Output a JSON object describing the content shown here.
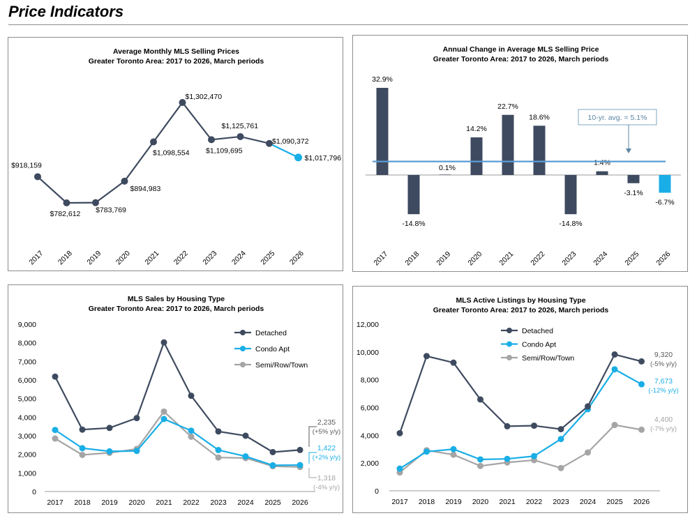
{
  "page": {
    "title": "Price Indicators"
  },
  "colors": {
    "detached": "#3e4a5f",
    "condo": "#19aee6",
    "semi": "#a5a5a5",
    "avg_line": "#5b9bd5",
    "axis": "#999999"
  },
  "chart_data": [
    {
      "id": "avg-prices",
      "type": "line",
      "title": "Average Monthly MLS Selling Prices",
      "subtitle": "Greater Toronto Area: 2017 to 2026, March periods",
      "categories": [
        "2017",
        "2018",
        "2019",
        "2020",
        "2021",
        "2022",
        "2023",
        "2024",
        "2025",
        "2026"
      ],
      "values": [
        918159,
        782612,
        783769,
        894983,
        1098554,
        1302470,
        1109695,
        1125761,
        1090372,
        1017796
      ],
      "labels": [
        "$918,159",
        "$782,612",
        "$783,769",
        "$894,983",
        "$1,098,554",
        "$1,302,470",
        "$1,109,695",
        "$1,125,761",
        "$1,090,372",
        "$1,017,796"
      ],
      "highlight_last": true
    },
    {
      "id": "annual-change",
      "type": "bar",
      "title": "Annual Change in Average MLS Selling Price",
      "subtitle": "Greater Toronto Area: 2017 to 2026, March periods",
      "categories": [
        "2017",
        "2018",
        "2019",
        "2020",
        "2021",
        "2022",
        "2023",
        "2024",
        "2025",
        "2026"
      ],
      "values": [
        32.9,
        -14.8,
        0.1,
        14.2,
        22.7,
        18.6,
        -14.8,
        1.4,
        -3.1,
        -6.7
      ],
      "labels": [
        "32.9%",
        "-14.8%",
        "0.1%",
        "14.2%",
        "22.7%",
        "18.6%",
        "-14.8%",
        "1.4%",
        "-3.1%",
        "-6.7%"
      ],
      "average": 5.1,
      "average_label": "10-yr. avg. = 5.1%",
      "highlight_last": true
    },
    {
      "id": "sales-by-type",
      "type": "line",
      "title": "MLS Sales by Housing Type",
      "subtitle": "Greater Toronto Area: 2017 to 2026, March periods",
      "categories": [
        "2017",
        "2018",
        "2019",
        "2020",
        "2021",
        "2022",
        "2023",
        "2024",
        "2025",
        "2026"
      ],
      "ylim": [
        0,
        9000
      ],
      "yticks": [
        "0",
        "1,000",
        "2,000",
        "3,000",
        "4,000",
        "5,000",
        "6,000",
        "7,000",
        "8,000",
        "9,000"
      ],
      "legend_position": "top-right",
      "series": [
        {
          "name": "Detached",
          "values": [
            6180,
            3330,
            3420,
            3950,
            8020,
            5150,
            3230,
            3000,
            2120,
            2235
          ],
          "end_value": "2,235",
          "end_change": "(+5% y/y)"
        },
        {
          "name": "Condo Apt",
          "values": [
            3310,
            2330,
            2160,
            2180,
            3900,
            3270,
            2230,
            1890,
            1410,
            1422
          ],
          "end_value": "1,422",
          "end_change": "(+2% y/y)"
        },
        {
          "name": "Semi/Row/Town",
          "values": [
            2850,
            1970,
            2080,
            2290,
            4300,
            2950,
            1830,
            1800,
            1360,
            1318
          ],
          "end_value": "1,318",
          "end_change": "(-4% y/y)"
        }
      ]
    },
    {
      "id": "listings-by-type",
      "type": "line",
      "title": "MLS Active Listings by Housing Type",
      "subtitle": "Greater Toronto Area: 2017 to 2026, March periods",
      "categories": [
        "2017",
        "2018",
        "2019",
        "2020",
        "2021",
        "2022",
        "2023",
        "2024",
        "2025",
        "2026"
      ],
      "ylim": [
        0,
        12000
      ],
      "yticks": [
        "0",
        "2,000",
        "4,000",
        "6,000",
        "8,000",
        "10,000",
        "12,000"
      ],
      "legend_position": "top-left",
      "series": [
        {
          "name": "Detached",
          "values": [
            4150,
            9700,
            9230,
            6580,
            4650,
            4690,
            4440,
            6080,
            9820,
            9320
          ],
          "end_value": "9,320",
          "end_change": "(-5% y/y)"
        },
        {
          "name": "Condo Apt",
          "values": [
            1600,
            2820,
            3000,
            2260,
            2300,
            2500,
            3730,
            5880,
            8750,
            7673
          ],
          "end_value": "7,673",
          "end_change": "(-12% y/y)"
        },
        {
          "name": "Semi/Row/Town",
          "values": [
            1320,
            2920,
            2600,
            1790,
            2040,
            2210,
            1640,
            2760,
            4740,
            4400
          ],
          "end_value": "4,400",
          "end_change": "(-7% y/y)"
        }
      ]
    }
  ]
}
